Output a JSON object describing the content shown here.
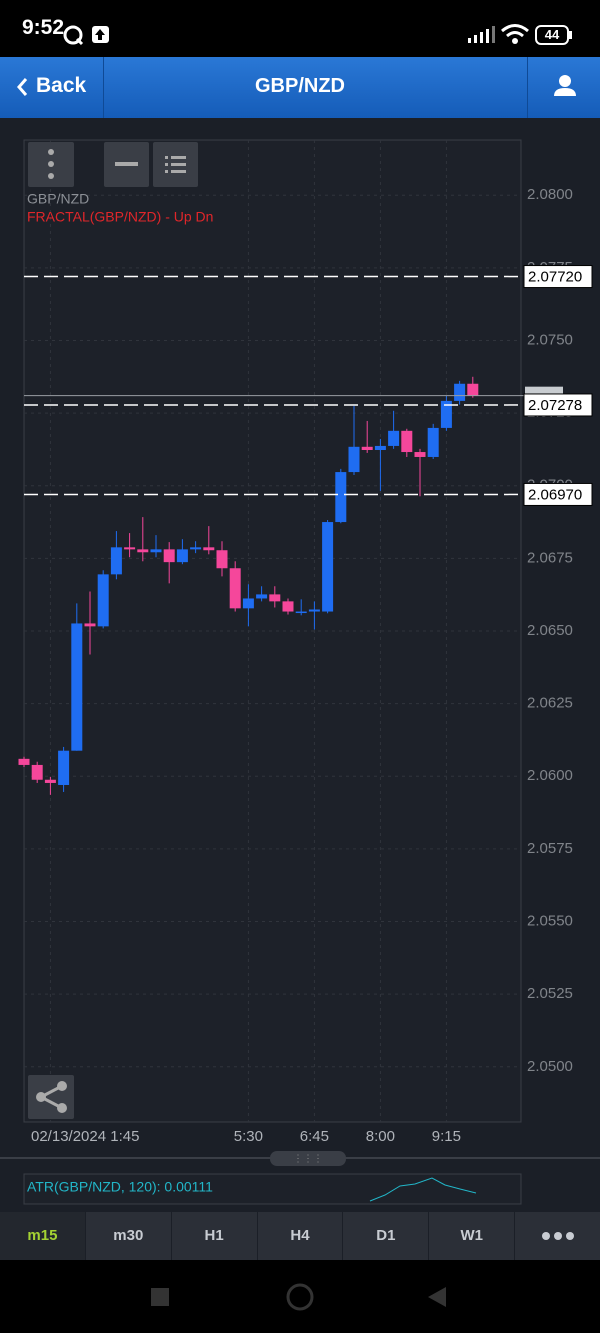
{
  "status_bar": {
    "time": "9:52",
    "battery": "44"
  },
  "nav": {
    "back": "Back",
    "title": "GBP/NZD"
  },
  "chart_data": {
    "type": "candlestick",
    "symbol": "GBP/NZD",
    "indicator": "FRACTAL(GBP/NZD) - Up Dn",
    "categories": [
      null,
      null,
      "02/13/2024 1:45",
      null,
      null,
      null,
      null,
      null,
      null,
      null,
      null,
      null,
      null,
      null,
      null,
      null,
      null,
      "5:30",
      null,
      null,
      null,
      null,
      "6:45",
      null,
      null,
      null,
      null,
      "8:00",
      null,
      null,
      null,
      null,
      "9:15",
      null,
      null
    ],
    "open": [
      2.0606,
      2.06039,
      2.05988,
      2.0597,
      2.06088,
      2.06526,
      2.06516,
      2.06695,
      2.06788,
      2.06781,
      2.06771,
      2.06781,
      2.06737,
      2.06781,
      2.06788,
      2.06778,
      2.06716,
      2.06578,
      2.06612,
      2.06626,
      2.06602,
      2.06567,
      2.06567,
      2.06567,
      2.06875,
      2.07047,
      2.07134,
      2.07123,
      2.07137,
      2.07189,
      2.07116,
      2.07099,
      2.07199,
      2.07292,
      2.07351
    ],
    "high": [
      2.06067,
      2.0605,
      2.05998,
      2.06101,
      2.06595,
      2.06636,
      2.06709,
      2.06844,
      2.06837,
      2.06892,
      2.0683,
      2.06806,
      2.06816,
      2.06809,
      2.06861,
      2.06809,
      2.0674,
      2.06661,
      2.06654,
      2.06654,
      2.06612,
      2.06609,
      2.06602,
      2.06882,
      2.07058,
      2.07275,
      2.07223,
      2.07161,
      2.07258,
      2.07196,
      2.07127,
      2.07213,
      2.0731,
      2.07361,
      2.07375
    ],
    "low": [
      2.06032,
      2.05977,
      2.05936,
      2.05946,
      2.06088,
      2.06419,
      2.06509,
      2.06678,
      2.06754,
      2.0674,
      2.06754,
      2.06664,
      2.0673,
      2.06768,
      2.06764,
      2.06688,
      2.06567,
      2.06516,
      2.06602,
      2.06581,
      2.06557,
      2.06554,
      2.06505,
      2.06561,
      2.06871,
      2.07037,
      2.07113,
      2.06982,
      2.07127,
      2.07099,
      2.06964,
      2.07092,
      2.07189,
      2.07279,
      2.07303
    ],
    "close": [
      2.06039,
      2.05988,
      2.05977,
      2.06088,
      2.06526,
      2.06516,
      2.06695,
      2.06788,
      2.06781,
      2.06771,
      2.06781,
      2.06737,
      2.06781,
      2.06788,
      2.06778,
      2.06716,
      2.06578,
      2.06612,
      2.06626,
      2.06602,
      2.06567,
      2.06567,
      2.06574,
      2.06875,
      2.07047,
      2.07134,
      2.07123,
      2.07137,
      2.07189,
      2.07116,
      2.07099,
      2.07199,
      2.07292,
      2.07351,
      2.0731
    ],
    "up_color": "#1f6df2",
    "down_color": "#f5479b",
    "ylim": [
      2.0481,
      2.0819
    ],
    "yticks": [
      {
        "value": 2.08,
        "label": "2.0800"
      },
      {
        "value": 2.0775,
        "label": "2.0775"
      },
      {
        "value": 2.075,
        "label": "2.0750"
      },
      {
        "value": 2.0725,
        "label": "2.0725"
      },
      {
        "value": 2.07,
        "label": "2.0700"
      },
      {
        "value": 2.0675,
        "label": "2.0675"
      },
      {
        "value": 2.065,
        "label": "2.0650"
      },
      {
        "value": 2.0625,
        "label": "2.0625"
      },
      {
        "value": 2.06,
        "label": "2.0600"
      },
      {
        "value": 2.0575,
        "label": "2.0575"
      },
      {
        "value": 2.055,
        "label": "2.0550"
      },
      {
        "value": 2.0525,
        "label": "2.0525"
      },
      {
        "value": 2.05,
        "label": "2.0500"
      }
    ],
    "grid": true,
    "price_line": 2.0731,
    "levels": [
      {
        "value": 2.0772,
        "label": "2.07720"
      },
      {
        "value": 2.07278,
        "label": "2.07278"
      },
      {
        "value": 2.0697,
        "label": "2.06970"
      }
    ]
  },
  "atr": {
    "label": "ATR(GBP/NZD, 120): 0.00111"
  },
  "timeframes": [
    "m15",
    "m30",
    "H1",
    "H4",
    "D1",
    "W1"
  ],
  "active_timeframe": "m15"
}
